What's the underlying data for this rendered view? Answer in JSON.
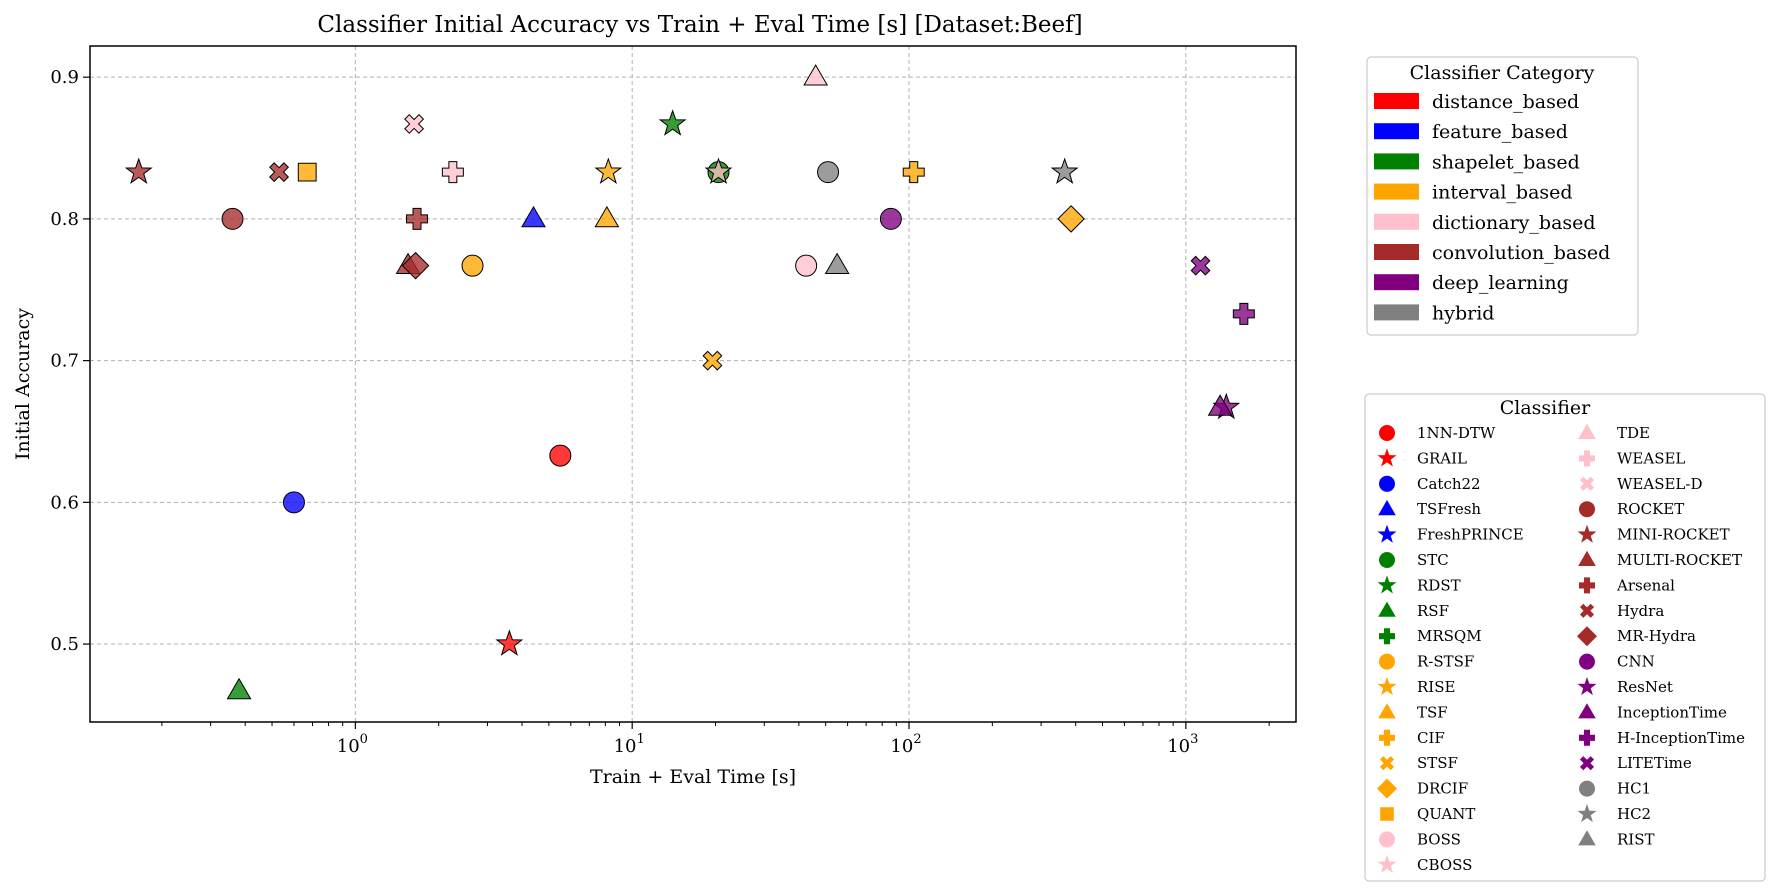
{
  "chart_data": {
    "type": "scatter",
    "title": "Classifier Initial Accuracy vs Train + Eval Time [s] [Dataset:Beef]",
    "xlabel": "Train + Eval Time [s]",
    "ylabel": "Initial Accuracy",
    "xscale": "log",
    "xlim": [
      0.11,
      2500
    ],
    "ylim": [
      0.445,
      0.922
    ],
    "grid": true,
    "x_ticks": [
      {
        "value": 1,
        "base": "10",
        "exp": "0"
      },
      {
        "value": 10,
        "base": "10",
        "exp": "1"
      },
      {
        "value": 100,
        "base": "10",
        "exp": "2"
      },
      {
        "value": 1000,
        "base": "10",
        "exp": "3"
      }
    ],
    "y_ticks": [
      {
        "value": 0.5,
        "label": "0.5"
      },
      {
        "value": 0.6,
        "label": "0.6"
      },
      {
        "value": 0.7,
        "label": "0.7"
      },
      {
        "value": 0.8,
        "label": "0.8"
      },
      {
        "value": 0.9,
        "label": "0.9"
      }
    ],
    "category_colors": {
      "distance_based": "#ff0000",
      "feature_based": "#0000ff",
      "shapelet_based": "#008000",
      "interval_based": "#ffa500",
      "dictionary_based": "#ffc0cb",
      "convolution_based": "#a52a2a",
      "deep_learning": "#800080",
      "hybrid": "#808080"
    },
    "category_legend": {
      "title": "Classifier Category",
      "position": "upper right, outside axes",
      "items": [
        {
          "label": "distance_based",
          "color": "#ff0000"
        },
        {
          "label": "feature_based",
          "color": "#0000ff"
        },
        {
          "label": "shapelet_based",
          "color": "#008000"
        },
        {
          "label": "interval_based",
          "color": "#ffa500"
        },
        {
          "label": "dictionary_based",
          "color": "#ffc0cb"
        },
        {
          "label": "convolution_based",
          "color": "#a52a2a"
        },
        {
          "label": "deep_learning",
          "color": "#800080"
        },
        {
          "label": "hybrid",
          "color": "#808080"
        }
      ]
    },
    "classifier_legend": {
      "title": "Classifier",
      "position": "lower right, outside axes",
      "columns": 2,
      "items": [
        {
          "label": "1NN-DTW",
          "color": "#ff0000",
          "marker": "circle"
        },
        {
          "label": "GRAIL",
          "color": "#ff0000",
          "marker": "star"
        },
        {
          "label": "Catch22",
          "color": "#0000ff",
          "marker": "circle"
        },
        {
          "label": "TSFresh",
          "color": "#0000ff",
          "marker": "triangle"
        },
        {
          "label": "FreshPRINCE",
          "color": "#0000ff",
          "marker": "star"
        },
        {
          "label": "STC",
          "color": "#008000",
          "marker": "circle"
        },
        {
          "label": "RDST",
          "color": "#008000",
          "marker": "star"
        },
        {
          "label": "RSF",
          "color": "#008000",
          "marker": "triangle"
        },
        {
          "label": "MRSQM",
          "color": "#008000",
          "marker": "plus"
        },
        {
          "label": "R-STSF",
          "color": "#ffa500",
          "marker": "circle"
        },
        {
          "label": "RISE",
          "color": "#ffa500",
          "marker": "star"
        },
        {
          "label": "TSF",
          "color": "#ffa500",
          "marker": "triangle"
        },
        {
          "label": "CIF",
          "color": "#ffa500",
          "marker": "plus"
        },
        {
          "label": "STSF",
          "color": "#ffa500",
          "marker": "x"
        },
        {
          "label": "DRCIF",
          "color": "#ffa500",
          "marker": "diamond"
        },
        {
          "label": "QUANT",
          "color": "#ffa500",
          "marker": "square"
        },
        {
          "label": "BOSS",
          "color": "#ffc0cb",
          "marker": "circle"
        },
        {
          "label": "CBOSS",
          "color": "#ffc0cb",
          "marker": "star"
        },
        {
          "label": "TDE",
          "color": "#ffc0cb",
          "marker": "triangle"
        },
        {
          "label": "WEASEL",
          "color": "#ffc0cb",
          "marker": "plus"
        },
        {
          "label": "WEASEL-D",
          "color": "#ffc0cb",
          "marker": "x"
        },
        {
          "label": "ROCKET",
          "color": "#a52a2a",
          "marker": "circle"
        },
        {
          "label": "MINI-ROCKET",
          "color": "#a52a2a",
          "marker": "star"
        },
        {
          "label": "MULTI-ROCKET",
          "color": "#a52a2a",
          "marker": "triangle"
        },
        {
          "label": "Arsenal",
          "color": "#a52a2a",
          "marker": "plus"
        },
        {
          "label": "Hydra",
          "color": "#a52a2a",
          "marker": "x"
        },
        {
          "label": "MR-Hydra",
          "color": "#a52a2a",
          "marker": "diamond"
        },
        {
          "label": "CNN",
          "color": "#800080",
          "marker": "circle"
        },
        {
          "label": "ResNet",
          "color": "#800080",
          "marker": "star"
        },
        {
          "label": "InceptionTime",
          "color": "#800080",
          "marker": "triangle"
        },
        {
          "label": "H-InceptionTime",
          "color": "#800080",
          "marker": "plus"
        },
        {
          "label": "LITETime",
          "color": "#800080",
          "marker": "x"
        },
        {
          "label": "HC1",
          "color": "#808080",
          "marker": "circle"
        },
        {
          "label": "HC2",
          "color": "#808080",
          "marker": "star"
        },
        {
          "label": "RIST",
          "color": "#808080",
          "marker": "triangle"
        }
      ]
    },
    "points": [
      {
        "name": "1NN-DTW",
        "category": "distance_based",
        "marker": "circle",
        "x": 5.5,
        "y": 0.633
      },
      {
        "name": "GRAIL",
        "category": "distance_based",
        "marker": "star",
        "x": 3.6,
        "y": 0.5
      },
      {
        "name": "Catch22",
        "category": "feature_based",
        "marker": "circle",
        "x": 0.6,
        "y": 0.6
      },
      {
        "name": "TSFresh",
        "category": "feature_based",
        "marker": "triangle",
        "x": 4.4,
        "y": 0.8
      },
      {
        "name": "STC",
        "category": "shapelet_based",
        "marker": "circle",
        "x": 20.5,
        "y": 0.833
      },
      {
        "name": "RDST",
        "category": "shapelet_based",
        "marker": "star",
        "x": 14.0,
        "y": 0.867
      },
      {
        "name": "RSF",
        "category": "shapelet_based",
        "marker": "triangle",
        "x": 0.38,
        "y": 0.467
      },
      {
        "name": "R-STSF",
        "category": "interval_based",
        "marker": "circle",
        "x": 2.65,
        "y": 0.767
      },
      {
        "name": "RISE",
        "category": "interval_based",
        "marker": "star",
        "x": 8.2,
        "y": 0.833
      },
      {
        "name": "TSF",
        "category": "interval_based",
        "marker": "triangle",
        "x": 8.1,
        "y": 0.8
      },
      {
        "name": "CIF",
        "category": "interval_based",
        "marker": "plus",
        "x": 104,
        "y": 0.833
      },
      {
        "name": "STSF",
        "category": "interval_based",
        "marker": "x",
        "x": 19.5,
        "y": 0.7
      },
      {
        "name": "DRCIF",
        "category": "interval_based",
        "marker": "diamond",
        "x": 385,
        "y": 0.8
      },
      {
        "name": "QUANT",
        "category": "interval_based",
        "marker": "square",
        "x": 0.67,
        "y": 0.833
      },
      {
        "name": "BOSS",
        "category": "dictionary_based",
        "marker": "circle",
        "x": 42.5,
        "y": 0.767
      },
      {
        "name": "CBOSS",
        "category": "dictionary_based",
        "marker": "star",
        "x": 20.5,
        "y": 0.833
      },
      {
        "name": "TDE",
        "category": "dictionary_based",
        "marker": "triangle",
        "x": 46,
        "y": 0.9
      },
      {
        "name": "WEASEL",
        "category": "dictionary_based",
        "marker": "plus",
        "x": 2.25,
        "y": 0.833
      },
      {
        "name": "WEASEL-D",
        "category": "dictionary_based",
        "marker": "x",
        "x": 1.63,
        "y": 0.867
      },
      {
        "name": "ROCKET",
        "category": "convolution_based",
        "marker": "circle",
        "x": 0.36,
        "y": 0.8
      },
      {
        "name": "MINI-ROCKET",
        "category": "convolution_based",
        "marker": "star",
        "x": 0.165,
        "y": 0.833
      },
      {
        "name": "MULTI-ROCKET",
        "category": "convolution_based",
        "marker": "triangle",
        "x": 1.55,
        "y": 0.767
      },
      {
        "name": "Arsenal",
        "category": "convolution_based",
        "marker": "plus",
        "x": 1.67,
        "y": 0.8
      },
      {
        "name": "Hydra",
        "category": "convolution_based",
        "marker": "x",
        "x": 0.53,
        "y": 0.833
      },
      {
        "name": "MR-Hydra",
        "category": "convolution_based",
        "marker": "diamond",
        "x": 1.65,
        "y": 0.767
      },
      {
        "name": "CNN",
        "category": "deep_learning",
        "marker": "circle",
        "x": 86,
        "y": 0.8
      },
      {
        "name": "ResNet",
        "category": "deep_learning",
        "marker": "star",
        "x": 1400,
        "y": 0.667
      },
      {
        "name": "InceptionTime",
        "category": "deep_learning",
        "marker": "triangle",
        "x": 1330,
        "y": 0.667
      },
      {
        "name": "H-InceptionTime",
        "category": "deep_learning",
        "marker": "plus",
        "x": 1620,
        "y": 0.733
      },
      {
        "name": "LITETime",
        "category": "deep_learning",
        "marker": "x",
        "x": 1130,
        "y": 0.767
      },
      {
        "name": "HC1",
        "category": "hybrid",
        "marker": "circle",
        "x": 51,
        "y": 0.833
      },
      {
        "name": "HC2",
        "category": "hybrid",
        "marker": "star",
        "x": 365,
        "y": 0.833
      },
      {
        "name": "RIST",
        "category": "hybrid",
        "marker": "triangle",
        "x": 55,
        "y": 0.767
      }
    ]
  }
}
